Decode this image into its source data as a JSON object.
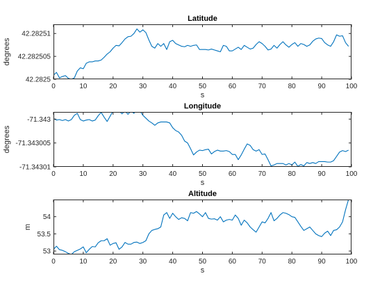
{
  "chart_data": [
    {
      "type": "line",
      "title": "Latitude",
      "xlabel": "s",
      "ylabel": "degrees",
      "xlim": [
        0,
        100
      ],
      "ylim": [
        42.2825,
        42.282512
      ],
      "xticks": [
        0,
        10,
        20,
        30,
        40,
        50,
        60,
        70,
        80,
        90,
        100
      ],
      "xtick_labels": [
        "0",
        "10",
        "20",
        "30",
        "40",
        "50",
        "60",
        "70",
        "80",
        "90",
        "100"
      ],
      "yticks": [
        42.2825,
        42.282505,
        42.28251
      ],
      "ytick_labels": [
        "42.2825",
        "42.282505",
        "42.28251"
      ],
      "grid": false,
      "color": "#0072bd",
      "x": [
        0,
        1,
        2,
        3,
        4,
        5,
        6,
        7,
        8,
        9,
        10,
        11,
        12,
        13,
        14,
        15,
        16,
        17,
        18,
        19,
        20,
        21,
        22,
        23,
        24,
        25,
        26,
        27,
        28,
        29,
        30,
        31,
        32,
        33,
        34,
        35,
        36,
        37,
        38,
        39,
        40,
        41,
        42,
        43,
        44,
        45,
        46,
        47,
        48,
        49,
        50,
        51,
        52,
        53,
        54,
        55,
        56,
        57,
        58,
        59,
        60,
        61,
        62,
        63,
        64,
        65,
        66,
        67,
        68,
        69,
        70,
        71,
        72,
        73,
        74,
        75,
        76,
        77,
        78,
        79,
        80,
        81,
        82,
        83,
        84,
        85,
        86,
        87,
        88,
        89,
        90,
        91,
        92,
        93,
        94,
        95,
        96,
        97,
        98,
        99
      ],
      "values": [
        42.2825009,
        42.2825015,
        42.2825003,
        42.2825006,
        42.2825008,
        42.2825002,
        42.2825,
        42.2825003,
        42.2825018,
        42.2825025,
        42.2825023,
        42.2825035,
        42.2825038,
        42.2825038,
        42.282504,
        42.282504,
        42.2825042,
        42.2825048,
        42.2825055,
        42.282506,
        42.2825068,
        42.2825074,
        42.2825073,
        42.282508,
        42.2825088,
        42.2825093,
        42.2825094,
        42.28251,
        42.282511,
        42.2825103,
        42.2825108,
        42.2825102,
        42.2825086,
        42.2825072,
        42.2825068,
        42.2825078,
        42.2825072,
        42.2825078,
        42.2825065,
        42.2825082,
        42.2825085,
        42.2825078,
        42.2825075,
        42.2825072,
        42.2825071,
        42.2825074,
        42.2825072,
        42.2825074,
        42.2825075,
        42.2825065,
        42.2825065,
        42.2825065,
        42.2825064,
        42.2825066,
        42.2825064,
        42.2825062,
        42.282506,
        42.2825074,
        42.2825072,
        42.2825062,
        42.2825062,
        42.2825066,
        42.282507,
        42.2825065,
        42.2825074,
        42.282507,
        42.2825066,
        42.2825068,
        42.2825076,
        42.2825082,
        42.2825078,
        42.2825072,
        42.2825064,
        42.2825066,
        42.2825074,
        42.2825068,
        42.2825076,
        42.2825082,
        42.2825075,
        42.282507,
        42.2825076,
        42.282508,
        42.2825072,
        42.2825078,
        42.2825076,
        42.2825072,
        42.2825075,
        42.2825083,
        42.2825088,
        42.282509,
        42.2825089,
        42.282508,
        42.2825075,
        42.2825072,
        42.2825082,
        42.2825097,
        42.2825094,
        42.2825095,
        42.282508,
        42.2825072
      ]
    },
    {
      "type": "line",
      "title": "Longitude",
      "xlabel": "s",
      "ylabel": "degrees",
      "xlim": [
        0,
        100
      ],
      "ylim": [
        -71.34301,
        -71.3429985
      ],
      "xticks": [
        0,
        10,
        20,
        30,
        40,
        50,
        60,
        70,
        80,
        90,
        100
      ],
      "xtick_labels": [
        "0",
        "10",
        "20",
        "30",
        "40",
        "50",
        "60",
        "70",
        "80",
        "90",
        "100"
      ],
      "yticks": [
        -71.34301,
        -71.343005,
        -71.343
      ],
      "ytick_labels": [
        "-71.34301",
        "-71.343005",
        "-71.343"
      ],
      "grid": false,
      "color": "#0072bd",
      "x": [
        0,
        1,
        2,
        3,
        4,
        5,
        6,
        7,
        8,
        9,
        10,
        11,
        12,
        13,
        14,
        15,
        16,
        17,
        18,
        19,
        20,
        21,
        22,
        23,
        24,
        25,
        26,
        27,
        28,
        29,
        30,
        31,
        32,
        33,
        34,
        35,
        36,
        37,
        38,
        39,
        40,
        41,
        42,
        43,
        44,
        45,
        46,
        47,
        48,
        49,
        50,
        51,
        52,
        53,
        54,
        55,
        56,
        57,
        58,
        59,
        60,
        61,
        62,
        63,
        64,
        65,
        66,
        67,
        68,
        69,
        70,
        71,
        72,
        73,
        74,
        75,
        76,
        77,
        78,
        79,
        80,
        81,
        82,
        83,
        84,
        85,
        86,
        87,
        88,
        89,
        90,
        91,
        92,
        93,
        94,
        95,
        96,
        97,
        98,
        99
      ],
      "values": [
        -71.3429999,
        -71.3430002,
        -71.3430001,
        -71.3430003,
        -71.3430001,
        -71.3430004,
        -71.3430001,
        -71.3429992,
        -71.3429988,
        -71.3430001,
        -71.3430004,
        -71.3430002,
        -71.3430001,
        -71.3430004,
        -71.3430002,
        -71.3429993,
        -71.3429986,
        -71.3429996,
        -71.3430005,
        -71.3429994,
        -71.3429983,
        -71.3429978,
        -71.3429983,
        -71.3429989,
        -71.3429983,
        -71.342999,
        -71.3429983,
        -71.3429988,
        -71.3429978,
        -71.3429983,
        -71.3429992,
        -71.3429998,
        -71.3430004,
        -71.3430008,
        -71.3430013,
        -71.3430008,
        -71.3430006,
        -71.3430006,
        -71.3430006,
        -71.3430008,
        -71.3430018,
        -71.3430024,
        -71.3430027,
        -71.3430034,
        -71.3430046,
        -71.343005,
        -71.3430062,
        -71.3430075,
        -71.3430069,
        -71.3430065,
        -71.3430066,
        -71.3430064,
        -71.3430063,
        -71.3430073,
        -71.3430068,
        -71.3430065,
        -71.3430067,
        -71.3430067,
        -71.3430066,
        -71.3430068,
        -71.3430074,
        -71.3430074,
        -71.3430085,
        -71.3430075,
        -71.3430063,
        -71.3430052,
        -71.3430055,
        -71.3430064,
        -71.3430067,
        -71.3430064,
        -71.3430074,
        -71.3430073,
        -71.3430085,
        -71.3430098,
        -71.3430096,
        -71.3430093,
        -71.3430093,
        -71.3430093,
        -71.3430096,
        -71.3430093,
        -71.3430096,
        -71.343009,
        -71.3430099,
        -71.3430095,
        -71.3430098,
        -71.3430091,
        -71.3430093,
        -71.3430091,
        -71.3430093,
        -71.3430089,
        -71.3430089,
        -71.3430089,
        -71.343009,
        -71.343009,
        -71.3430087,
        -71.3430078,
        -71.3430069,
        -71.3430066,
        -71.3430068,
        -71.3430065
      ]
    },
    {
      "type": "line",
      "title": "Altitude",
      "xlabel": "s",
      "ylabel": "m",
      "xlim": [
        0,
        100
      ],
      "ylim": [
        52.9,
        54.5
      ],
      "xticks": [
        0,
        10,
        20,
        30,
        40,
        50,
        60,
        70,
        80,
        90,
        100
      ],
      "xtick_labels": [
        "0",
        "10",
        "20",
        "30",
        "40",
        "50",
        "60",
        "70",
        "80",
        "90",
        "100"
      ],
      "yticks": [
        53,
        53.5,
        54
      ],
      "ytick_labels": [
        "53",
        "53.5",
        "54"
      ],
      "grid": false,
      "color": "#0072bd",
      "x": [
        0,
        1,
        2,
        3,
        4,
        5,
        6,
        7,
        8,
        9,
        10,
        11,
        12,
        13,
        14,
        15,
        16,
        17,
        18,
        19,
        20,
        21,
        22,
        23,
        24,
        25,
        26,
        27,
        28,
        29,
        30,
        31,
        32,
        33,
        34,
        35,
        36,
        37,
        38,
        39,
        40,
        41,
        42,
        43,
        44,
        45,
        46,
        47,
        48,
        49,
        50,
        51,
        52,
        53,
        54,
        55,
        56,
        57,
        58,
        59,
        60,
        61,
        62,
        63,
        64,
        65,
        66,
        67,
        68,
        69,
        70,
        71,
        72,
        73,
        74,
        75,
        76,
        77,
        78,
        79,
        80,
        81,
        82,
        83,
        84,
        85,
        86,
        87,
        88,
        89,
        90,
        91,
        92,
        93,
        94,
        95,
        96,
        97,
        98,
        99
      ],
      "values": [
        53.05,
        53.14,
        53.04,
        53.02,
        52.98,
        52.93,
        52.9,
        52.98,
        53.02,
        53.06,
        53.12,
        52.95,
        53.05,
        53.13,
        53.12,
        53.24,
        53.3,
        53.3,
        53.36,
        53.17,
        53.22,
        53.24,
        53.05,
        53.12,
        53.25,
        53.2,
        53.2,
        53.25,
        53.26,
        53.22,
        53.25,
        53.3,
        53.5,
        53.6,
        53.63,
        53.65,
        53.7,
        54.05,
        54.12,
        53.95,
        54.1,
        54.0,
        53.92,
        53.97,
        53.95,
        53.88,
        54.12,
        54.1,
        54.15,
        54.08,
        54.0,
        54.12,
        53.95,
        53.93,
        53.94,
        53.9,
        54.0,
        53.85,
        53.9,
        53.92,
        53.9,
        54.05,
        53.95,
        53.75,
        53.9,
        53.82,
        53.7,
        53.62,
        53.55,
        53.7,
        53.85,
        53.82,
        53.95,
        54.12,
        53.88,
        53.95,
        54.05,
        54.12,
        54.1,
        54.06,
        54.0,
        53.98,
        53.85,
        53.72,
        53.6,
        53.65,
        53.7,
        53.6,
        53.5,
        53.45,
        53.42,
        53.52,
        53.58,
        53.45,
        53.6,
        53.62,
        53.7,
        53.85,
        54.2,
        54.5
      ]
    }
  ]
}
